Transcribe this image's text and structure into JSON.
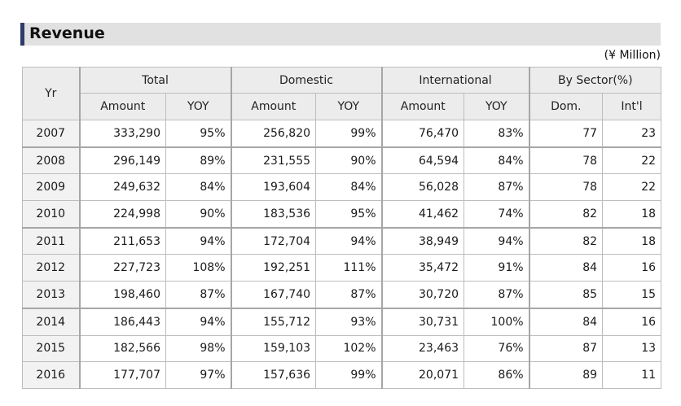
{
  "title": "Revenue",
  "unit_note": "(¥ Million)",
  "chart_data": {
    "type": "table",
    "title": "Revenue",
    "unit": "(¥ Million)",
    "header_groups": [
      {
        "label": "Yr"
      },
      {
        "label": "Total"
      },
      {
        "label": "Domestic"
      },
      {
        "label": "International"
      },
      {
        "label": "By Sector(%)"
      }
    ],
    "sub_headers": [
      "Amount",
      "YOY",
      "Amount",
      "YOY",
      "Amount",
      "YOY",
      "Dom.",
      "Int'l"
    ],
    "rows": [
      {
        "year": "2007",
        "values": [
          "333,290",
          "95%",
          "256,820",
          "99%",
          "76,470",
          "83%",
          "77",
          "23"
        ]
      },
      {
        "year": "2008",
        "values": [
          "296,149",
          "89%",
          "231,555",
          "90%",
          "64,594",
          "84%",
          "78",
          "22"
        ]
      },
      {
        "year": "2009",
        "values": [
          "249,632",
          "84%",
          "193,604",
          "84%",
          "56,028",
          "87%",
          "78",
          "22"
        ]
      },
      {
        "year": "2010",
        "values": [
          "224,998",
          "90%",
          "183,536",
          "95%",
          "41,462",
          "74%",
          "82",
          "18"
        ]
      },
      {
        "year": "2011",
        "values": [
          "211,653",
          "94%",
          "172,704",
          "94%",
          "38,949",
          "94%",
          "82",
          "18"
        ]
      },
      {
        "year": "2012",
        "values": [
          "227,723",
          "108%",
          "192,251",
          "111%",
          "35,472",
          "91%",
          "84",
          "16"
        ]
      },
      {
        "year": "2013",
        "values": [
          "198,460",
          "87%",
          "167,740",
          "87%",
          "30,720",
          "87%",
          "85",
          "15"
        ]
      },
      {
        "year": "2014",
        "values": [
          "186,443",
          "94%",
          "155,712",
          "93%",
          "30,731",
          "100%",
          "84",
          "16"
        ]
      },
      {
        "year": "2015",
        "values": [
          "182,566",
          "98%",
          "159,103",
          "102%",
          "23,463",
          "76%",
          "87",
          "13"
        ]
      },
      {
        "year": "2016",
        "values": [
          "177,707",
          "97%",
          "157,636",
          "99%",
          "20,071",
          "86%",
          "89",
          "11"
        ]
      }
    ]
  }
}
